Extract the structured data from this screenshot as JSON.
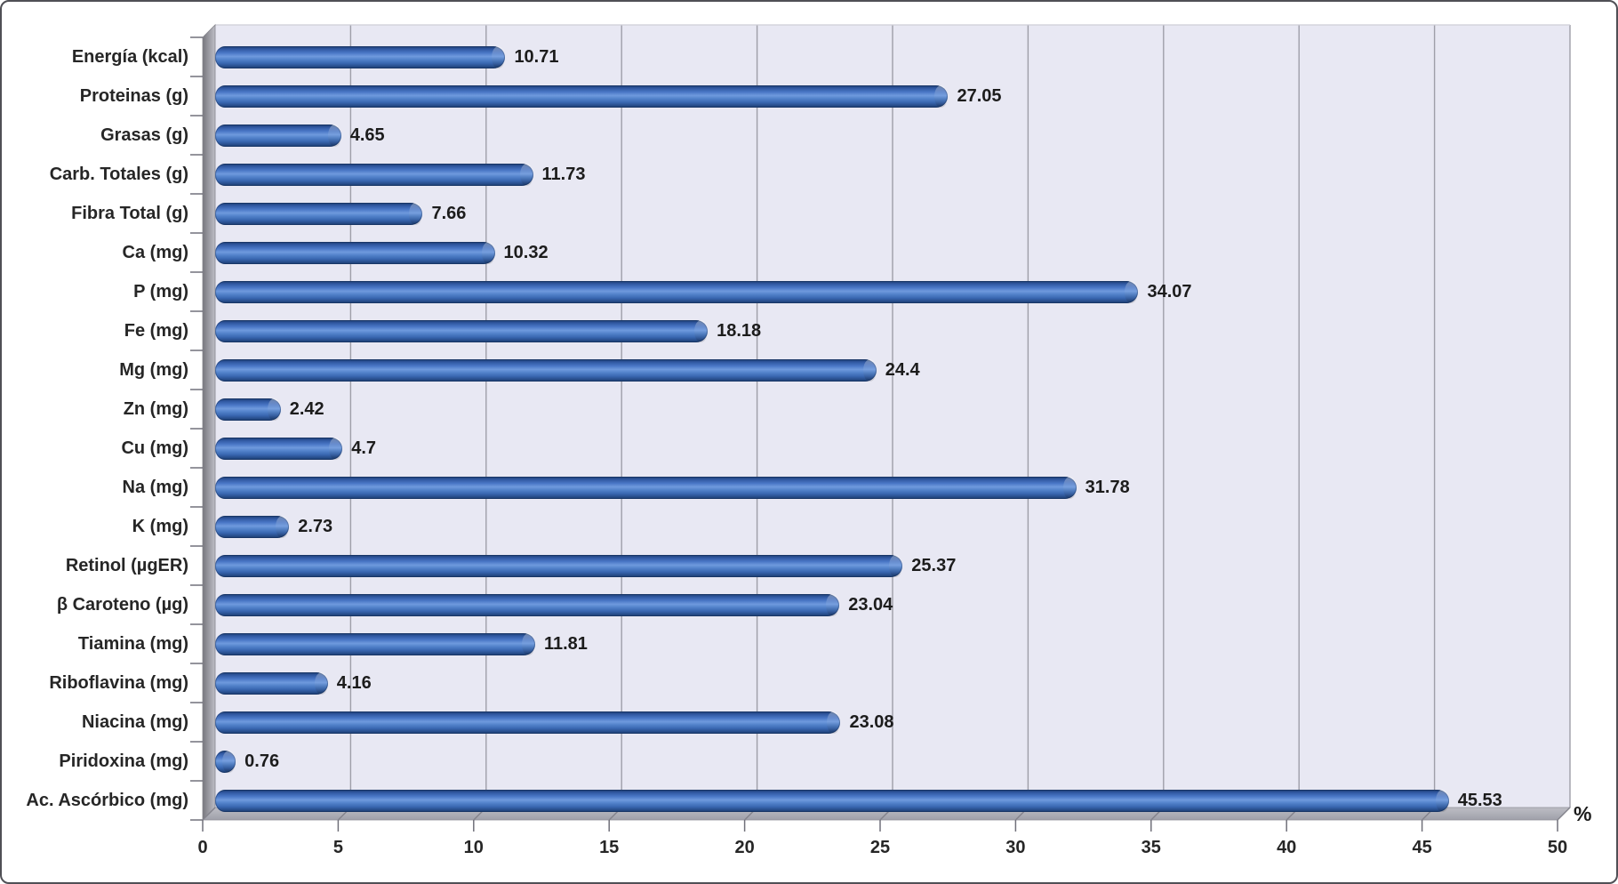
{
  "chart_data": {
    "type": "bar",
    "orientation": "horizontal",
    "title": "",
    "xlabel": "%",
    "ylabel": "",
    "categories": [
      "Energía (kcal)",
      "Proteinas (g)",
      "Grasas (g)",
      "Carb. Totales (g)",
      "Fibra Total (g)",
      "Ca (mg)",
      "P (mg)",
      "Fe (mg)",
      "Mg (mg)",
      "Zn (mg)",
      "Cu (mg)",
      "Na (mg)",
      "K (mg)",
      "Retinol (µgER)",
      "β Caroteno (µg)",
      "Tiamina (mg)",
      "Riboflavina (mg)",
      "Niacina (mg)",
      "Piridoxina (mg)",
      "Ac. Ascórbico (mg)"
    ],
    "values": [
      10.71,
      27.05,
      4.65,
      11.73,
      7.66,
      10.32,
      34.07,
      18.18,
      24.4,
      2.42,
      4.7,
      31.78,
      2.73,
      25.37,
      23.04,
      11.81,
      4.16,
      23.08,
      0.76,
      45.53
    ],
    "value_labels": [
      "10.71",
      "27.05",
      "4.65",
      "11.73",
      "7.66",
      "10.32",
      "34.07",
      "18.18",
      "24.4",
      "2.42",
      "4.7",
      "31.78",
      "2.73",
      "25.37",
      "23.04",
      "11.81",
      "4.16",
      "23.08",
      "0.76",
      "45.53"
    ],
    "x_axis": {
      "min": 0,
      "max": 50,
      "tick_step": 5,
      "ticks": [
        0,
        5,
        10,
        15,
        20,
        25,
        30,
        35,
        40,
        45,
        50
      ],
      "unit_label": "%"
    },
    "grid": true,
    "legend": false,
    "style_3d": true,
    "colors": {
      "bar_fill": "#4472C4",
      "bar_highlight": "#6F9ADD",
      "bar_shadow": "#1B3A6B",
      "plot_background": "#E8E8F3",
      "gridline": "#9E9EA8",
      "wall_dark": "#77777E",
      "wall_light": "#BEBEC6",
      "floor_light": "#BDBDC5",
      "floor_dark": "#9FA0A9",
      "axis_text": "#262626",
      "frame_border": "#4F4F55"
    }
  }
}
